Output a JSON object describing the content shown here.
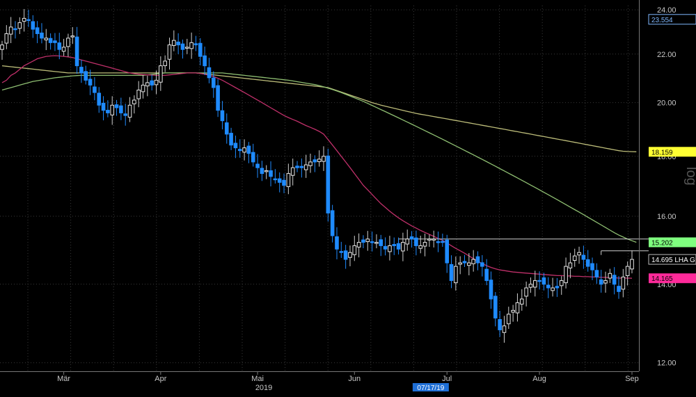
{
  "colors": {
    "background": "#000000",
    "grid": "#3a3a3a",
    "up_candle": "#e8e8e8",
    "down_candle": "#1f8bff",
    "ma_short": "#c0306a",
    "ma_mid": "#8fbf72",
    "ma_long": "#bdbd7a",
    "resistance": "#cfcfcf"
  },
  "chart_data": {
    "type": "candlestick",
    "ylim": [
      11.8,
      24.2
    ],
    "y_ticks": [
      "12.00",
      "14.00",
      "16.00",
      "18.00",
      "20.00",
      "22.00",
      "24.00"
    ],
    "x_months": [
      "Mär",
      "Apr",
      "Mai",
      "Jun",
      "Jul",
      "Aug",
      "Sep"
    ],
    "year_label": "2019",
    "date_flag": "07/17/19",
    "side_text": "log",
    "last_price_flag": "14.695 LHA G",
    "value_flags": [
      {
        "label": "23.554",
        "value": 23.554,
        "color": "#000000",
        "text_color": "#7fb8ff",
        "border": "#7fb8ff"
      },
      {
        "label": "18.159",
        "value": 18.159,
        "color": "#ffff33",
        "text_color": "#000000"
      },
      {
        "label": "15.202",
        "value": 15.202,
        "color": "#7fff7f",
        "text_color": "#000000"
      },
      {
        "label": "14.165",
        "value": 14.165,
        "color": "#ff2a9a",
        "text_color": "#000000"
      }
    ],
    "resistance_lines": [
      {
        "from_index": 90,
        "to_index": 155,
        "value": 15.3
      },
      {
        "from_index": 136,
        "to_index": 155,
        "value": 14.95
      }
    ],
    "ohlc_close": [
      22.4,
      22.9,
      23.2,
      23.1,
      23.4,
      23.6,
      23.5,
      23.1,
      22.9,
      22.7,
      22.7,
      22.5,
      22.5,
      22.2,
      22.3,
      22.7,
      22.8,
      21.5,
      21.2,
      20.9,
      20.7,
      20.4,
      19.9,
      19.7,
      19.6,
      19.9,
      19.8,
      19.6,
      19.5,
      19.9,
      20.1,
      20.5,
      20.7,
      20.8,
      20.7,
      20.9,
      21.5,
      21.7,
      22.4,
      22.6,
      22.4,
      22.2,
      22.3,
      22.5,
      22.4,
      21.9,
      21.5,
      21.0,
      20.6,
      19.7,
      19.3,
      18.8,
      18.4,
      18.3,
      18.2,
      18.3,
      18.1,
      17.8,
      17.6,
      17.4,
      17.5,
      17.3,
      17.2,
      17.1,
      17.0,
      17.4,
      17.6,
      17.6,
      17.6,
      17.7,
      17.8,
      17.8,
      17.9,
      18.0,
      16.1,
      15.4,
      15.0,
      14.9,
      14.7,
      14.9,
      15.1,
      15.2,
      15.2,
      15.3,
      15.2,
      15.2,
      15.1,
      15.0,
      15.1,
      15.1,
      15.0,
      15.2,
      15.3,
      15.3,
      15.1,
      15.1,
      15.2,
      15.3,
      15.3,
      15.2,
      15.2,
      14.6,
      14.1,
      14.5,
      14.6,
      14.6,
      14.6,
      14.7,
      14.6,
      14.5,
      14.1,
      13.6,
      13.1,
      12.8,
      12.9,
      13.2,
      13.3,
      13.5,
      13.6,
      13.9,
      14.0,
      14.1,
      14.1,
      14.0,
      13.9,
      13.9,
      13.9,
      14.1,
      14.5,
      14.6,
      14.8,
      14.9,
      14.7,
      14.5,
      14.4,
      14.2,
      14.0,
      14.1,
      14.3,
      14.0,
      13.8,
      14.2,
      14.5,
      14.7
    ],
    "ma_short": [
      20.8,
      20.9,
      21.1,
      21.2,
      21.35,
      21.5,
      21.6,
      21.7,
      21.8,
      21.85,
      21.9,
      21.92,
      21.93,
      21.92,
      21.9,
      21.88,
      21.85,
      21.8,
      21.75,
      21.7,
      21.65,
      21.6,
      21.55,
      21.5,
      21.45,
      21.4,
      21.35,
      21.3,
      21.25,
      21.2,
      21.17,
      21.15,
      21.13,
      21.12,
      21.11,
      21.1,
      21.1,
      21.1,
      21.12,
      21.14,
      21.16,
      21.18,
      21.2,
      21.2,
      21.2,
      21.18,
      21.15,
      21.1,
      21.05,
      20.98,
      20.9,
      20.8,
      20.7,
      20.6,
      20.5,
      20.4,
      20.3,
      20.2,
      20.1,
      20.0,
      19.9,
      19.8,
      19.7,
      19.6,
      19.5,
      19.42,
      19.35,
      19.28,
      19.2,
      19.12,
      19.05,
      18.98,
      18.9,
      18.8,
      18.6,
      18.4,
      18.2,
      18.0,
      17.8,
      17.6,
      17.4,
      17.2,
      17.0,
      16.85,
      16.7,
      16.55,
      16.4,
      16.28,
      16.16,
      16.05,
      15.95,
      15.86,
      15.78,
      15.7,
      15.63,
      15.56,
      15.5,
      15.44,
      15.38,
      15.32,
      15.26,
      15.18,
      15.1,
      15.02,
      14.95,
      14.88,
      14.8,
      14.72,
      14.65,
      14.58,
      14.52,
      14.47,
      14.43,
      14.4,
      14.38,
      14.36,
      14.34,
      14.33,
      14.32,
      14.31,
      14.3,
      14.29,
      14.28,
      14.27,
      14.26,
      14.25,
      14.24,
      14.24,
      14.23,
      14.23,
      14.22,
      14.22,
      14.21,
      14.21,
      14.2,
      14.2,
      14.19,
      14.19,
      14.18,
      14.18,
      14.17,
      14.17,
      14.17,
      14.165
    ],
    "ma_mid": [
      20.5,
      20.55,
      20.6,
      20.65,
      20.7,
      20.75,
      20.8,
      20.85,
      20.88,
      20.91,
      20.94,
      20.97,
      21.0,
      21.02,
      21.04,
      21.06,
      21.08,
      21.09,
      21.1,
      21.1,
      21.1,
      21.1,
      21.1,
      21.1,
      21.1,
      21.1,
      21.1,
      21.1,
      21.1,
      21.1,
      21.1,
      21.1,
      21.1,
      21.12,
      21.14,
      21.16,
      21.18,
      21.2,
      21.2,
      21.2,
      21.2,
      21.2,
      21.2,
      21.2,
      21.2,
      21.2,
      21.2,
      21.2,
      21.2,
      21.2,
      21.2,
      21.18,
      21.16,
      21.14,
      21.12,
      21.1,
      21.08,
      21.06,
      21.04,
      21.02,
      21.0,
      20.98,
      20.96,
      20.94,
      20.92,
      20.9,
      20.87,
      20.84,
      20.81,
      20.78,
      20.75,
      20.72,
      20.68,
      20.63,
      20.58,
      20.52,
      20.46,
      20.4,
      20.33,
      20.26,
      20.19,
      20.12,
      20.05,
      19.97,
      19.89,
      19.81,
      19.73,
      19.65,
      19.57,
      19.49,
      19.41,
      19.33,
      19.25,
      19.17,
      19.09,
      19.01,
      18.93,
      18.85,
      18.77,
      18.69,
      18.61,
      18.53,
      18.45,
      18.37,
      18.29,
      18.21,
      18.13,
      18.05,
      17.97,
      17.89,
      17.81,
      17.73,
      17.65,
      17.57,
      17.49,
      17.41,
      17.33,
      17.25,
      17.17,
      17.09,
      17.01,
      16.93,
      16.85,
      16.77,
      16.69,
      16.61,
      16.53,
      16.45,
      16.37,
      16.29,
      16.21,
      16.13,
      16.05,
      15.97,
      15.89,
      15.81,
      15.73,
      15.65,
      15.57,
      15.49,
      15.42,
      15.36,
      15.3,
      15.25,
      15.202
    ],
    "ma_long": [
      21.5,
      21.48,
      21.46,
      21.44,
      21.42,
      21.4,
      21.38,
      21.36,
      21.34,
      21.32,
      21.3,
      21.28,
      21.26,
      21.24,
      21.22,
      21.2,
      21.2,
      21.2,
      21.2,
      21.2,
      21.2,
      21.2,
      21.2,
      21.2,
      21.2,
      21.2,
      21.2,
      21.2,
      21.2,
      21.2,
      21.2,
      21.2,
      21.2,
      21.2,
      21.2,
      21.2,
      21.2,
      21.2,
      21.2,
      21.2,
      21.2,
      21.2,
      21.2,
      21.2,
      21.2,
      21.18,
      21.16,
      21.14,
      21.12,
      21.1,
      21.08,
      21.06,
      21.04,
      21.02,
      21.0,
      20.98,
      20.96,
      20.94,
      20.92,
      20.9,
      20.88,
      20.86,
      20.84,
      20.82,
      20.8,
      20.78,
      20.76,
      20.74,
      20.72,
      20.7,
      20.68,
      20.66,
      20.64,
      20.62,
      20.6,
      20.54,
      20.48,
      20.42,
      20.36,
      20.3,
      20.24,
      20.18,
      20.12,
      20.06,
      20.0,
      19.95,
      19.9,
      19.86,
      19.82,
      19.78,
      19.74,
      19.7,
      19.66,
      19.62,
      19.58,
      19.55,
      19.52,
      19.49,
      19.46,
      19.43,
      19.4,
      19.37,
      19.34,
      19.31,
      19.28,
      19.25,
      19.22,
      19.19,
      19.16,
      19.13,
      19.1,
      19.07,
      19.04,
      19.01,
      18.98,
      18.95,
      18.92,
      18.89,
      18.86,
      18.83,
      18.8,
      18.77,
      18.74,
      18.71,
      18.68,
      18.65,
      18.62,
      18.59,
      18.56,
      18.53,
      18.5,
      18.47,
      18.44,
      18.41,
      18.38,
      18.35,
      18.32,
      18.29,
      18.26,
      18.23,
      18.2,
      18.18,
      18.17,
      18.165,
      18.159
    ]
  }
}
